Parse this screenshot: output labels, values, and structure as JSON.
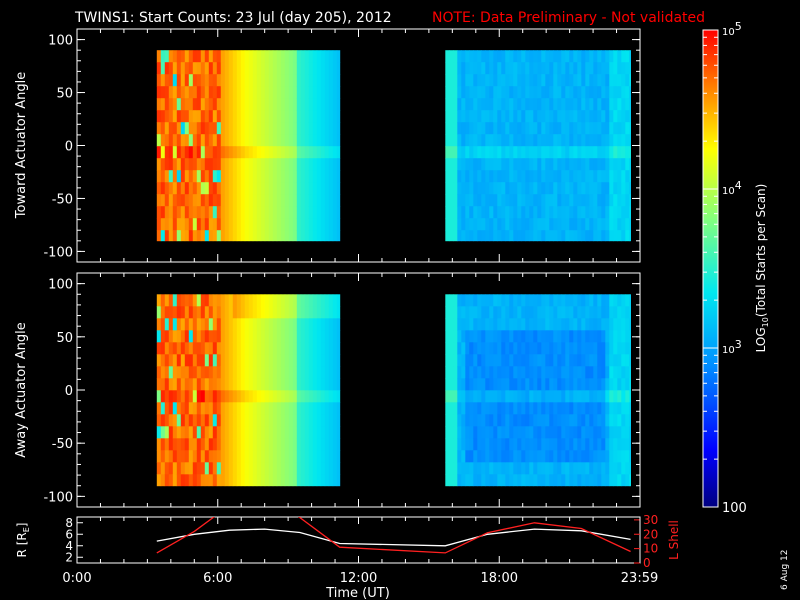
{
  "title": {
    "main": "TWINS1: Start Counts: 23 Jul (day 205), 2012",
    "note": "NOTE: Data Preliminary - Not validated"
  },
  "date_stamp": "6 Aug 12",
  "colors": {
    "background": "#000000",
    "foreground": "#ffffff",
    "note": "#ff0000",
    "l_shell_line": "#ff2020",
    "r_line": "#ffffff"
  },
  "chart_data": [
    {
      "type": "heatmap",
      "ylabel": "Toward Actuator Angle",
      "ylim": [
        -110,
        110
      ],
      "yticks": [
        100,
        50,
        0,
        -50,
        -100
      ],
      "xlim": [
        0,
        24
      ],
      "x_blocks_hours": [
        [
          3.4,
          11.2
        ],
        [
          15.7,
          23.6
        ]
      ],
      "angle_range": [
        -90,
        90
      ]
    },
    {
      "type": "heatmap",
      "ylabel": "Away Actuator Angle",
      "ylim": [
        -110,
        110
      ],
      "yticks": [
        100,
        50,
        0,
        -50,
        -100
      ],
      "xlim": [
        0,
        24
      ],
      "x_blocks_hours": [
        [
          3.4,
          11.2
        ],
        [
          15.7,
          23.6
        ]
      ],
      "angle_range": [
        -90,
        90
      ]
    },
    {
      "type": "line",
      "ylabel": "R [R",
      "ylabel_sub": "E",
      "ylabel_close": "]",
      "ylim": [
        1,
        9
      ],
      "yticks": [
        8,
        6,
        4,
        2
      ],
      "ylabel_right": "L Shell",
      "ylim_right": [
        0,
        32
      ],
      "yticks_right": [
        30,
        20,
        10,
        0
      ],
      "xlabel": "Time (UT)",
      "xlim": [
        0,
        24
      ],
      "xticks": [
        "0:00",
        "6:00",
        "12:00",
        "18:00",
        "23:59"
      ],
      "xtick_hours": [
        0,
        6,
        12,
        18,
        23.98
      ],
      "series": [
        {
          "name": "R",
          "x": [
            3.4,
            5,
            6.5,
            8,
            9.5,
            11.2,
            15.7,
            17.5,
            19.5,
            21.5,
            23.6
          ],
          "y": [
            4.8,
            6.0,
            6.7,
            6.9,
            6.3,
            4.4,
            4.0,
            6.0,
            6.9,
            6.6,
            5.1
          ]
        },
        {
          "name": "L Shell",
          "axis": "right",
          "x": [
            3.4,
            5,
            6,
            7,
            8,
            9.3,
            11.2,
            15.7,
            17.5,
            19.5,
            21.5,
            23.6
          ],
          "y": [
            7,
            22,
            34,
            50,
            50,
            34,
            11,
            7,
            21,
            28,
            24,
            8
          ]
        }
      ]
    }
  ],
  "colorbar": {
    "label_main": "LOG",
    "label_sub": "10",
    "label_rest": "(Total Starts per Scan)",
    "scale": "log",
    "range": [
      100,
      100000
    ],
    "ticks": [
      {
        "value": 100000,
        "base": "10",
        "exp": "5"
      },
      {
        "value": 10000,
        "base": "10",
        "exp": "4"
      },
      {
        "value": 1000,
        "base": "10",
        "exp": "3"
      },
      {
        "value": 100,
        "base": "100",
        "exp": ""
      }
    ]
  }
}
